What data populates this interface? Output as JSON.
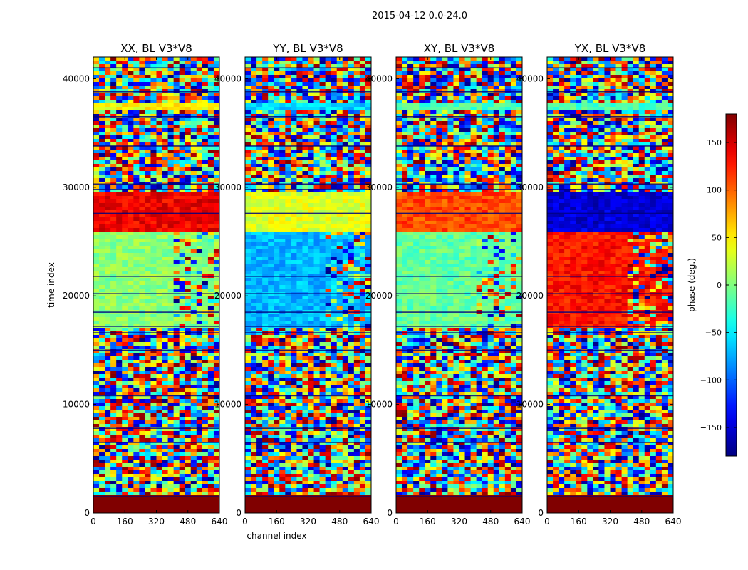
{
  "figure": {
    "suptitle": "2015-04-12 0.0-24.0"
  },
  "chart_data": [
    {
      "type": "heatmap",
      "title": "XX, BL V3*V8",
      "xlabel": "",
      "ylabel": "time index",
      "xlim": [
        0,
        640
      ],
      "ylim": [
        0,
        42000
      ],
      "xticks": [
        0,
        160,
        320,
        480,
        640
      ],
      "yticks": [
        0,
        10000,
        20000,
        30000,
        40000
      ],
      "ytick_labels_shown": true,
      "regions": [
        {
          "t": [
            0,
            1500
          ],
          "phase": 180,
          "note": "solid"
        },
        {
          "t": [
            17000,
            29500
          ],
          "phase": 5,
          "late_channel_noise_from": 400
        },
        {
          "t": [
            26000,
            29500
          ],
          "phase": 140
        },
        {
          "t": [
            37200,
            37800
          ],
          "phase": 45
        }
      ]
    },
    {
      "type": "heatmap",
      "title": "YY, BL V3*V8",
      "xlabel": "channel index",
      "ylabel": "",
      "xlim": [
        0,
        640
      ],
      "ylim": [
        0,
        42000
      ],
      "xticks": [
        0,
        160,
        320,
        480,
        640
      ],
      "yticks": [
        0,
        10000,
        20000,
        30000,
        40000
      ],
      "ytick_labels_shown": true,
      "regions": [
        {
          "t": [
            0,
            1500
          ],
          "phase": 180,
          "note": "solid"
        },
        {
          "t": [
            17000,
            29500
          ],
          "phase": -70,
          "late_channel_noise_from": 400
        },
        {
          "t": [
            26000,
            29500
          ],
          "phase": 35
        },
        {
          "t": [
            37200,
            37800
          ],
          "phase": -60
        }
      ]
    },
    {
      "type": "heatmap",
      "title": "XY, BL V3*V8",
      "xlabel": "",
      "ylabel": "",
      "xlim": [
        0,
        640
      ],
      "ylim": [
        0,
        42000
      ],
      "xticks": [
        0,
        160,
        320,
        480,
        640
      ],
      "yticks": [
        0,
        10000,
        20000,
        30000,
        40000
      ],
      "ytick_labels_shown": true,
      "regions": [
        {
          "t": [
            0,
            1500
          ],
          "phase": 180,
          "note": "solid"
        },
        {
          "t": [
            17000,
            29500
          ],
          "phase": -10,
          "late_channel_noise_from": 400
        },
        {
          "t": [
            26000,
            29500
          ],
          "phase": 110
        },
        {
          "t": [
            37200,
            37800
          ],
          "phase": -20
        }
      ]
    },
    {
      "type": "heatmap",
      "title": "YX, BL V3*V8",
      "xlabel": "",
      "ylabel": "",
      "xlim": [
        0,
        640
      ],
      "ylim": [
        0,
        42000
      ],
      "xticks": [
        0,
        160,
        320,
        480,
        640
      ],
      "yticks": [
        0,
        10000,
        20000,
        30000,
        40000
      ],
      "ytick_labels_shown": true,
      "regions": [
        {
          "t": [
            0,
            1500
          ],
          "phase": 180,
          "note": "solid"
        },
        {
          "t": [
            17000,
            26000
          ],
          "phase": 130,
          "late_channel_noise_from": 400
        },
        {
          "t": [
            26000,
            29500
          ],
          "phase": -150
        },
        {
          "t": [
            37200,
            37800
          ],
          "phase": -20
        }
      ]
    }
  ],
  "colorbar": {
    "label": "phase (deg.)",
    "range": [
      -180,
      180
    ],
    "ticks": [
      150,
      100,
      50,
      0,
      -50,
      -100,
      -150
    ],
    "tick_labels": [
      "150",
      "100",
      "50",
      "0",
      "−50",
      "−100",
      "−150"
    ],
    "colormap": "jet"
  },
  "colors": {
    "jet_low": "#00007f",
    "jet_high": "#7f0000",
    "frame": "#000000"
  }
}
